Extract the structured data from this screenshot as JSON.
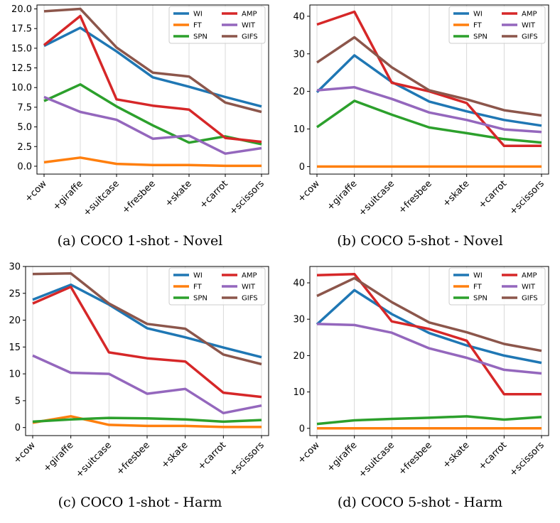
{
  "colors": {
    "WI": "#1f77b4",
    "FT": "#ff7f0e",
    "SPN": "#2ca02c",
    "AMP": "#d62728",
    "WIT": "#9467bd",
    "GIFS": "#8c564b"
  },
  "chart_data": [
    {
      "type": "line",
      "caption": "(a) COCO 1-shot - Novel",
      "categories": [
        "+cow",
        "+giraffe",
        "+suitcase",
        "+fresbee",
        "+skate",
        "+carrot",
        "+scissors"
      ],
      "ylim": [
        -1.0,
        20.5
      ],
      "yticks": [
        0.0,
        2.5,
        5.0,
        7.5,
        10.0,
        12.5,
        15.0,
        17.5,
        20.0
      ],
      "ytick_labels": [
        "0.0",
        "2.5",
        "5.0",
        "7.5",
        "10.0",
        "12.5",
        "15.0",
        "17.5",
        "20.0"
      ],
      "grid": "vertical",
      "legend": "top-right",
      "series": [
        {
          "name": "WI",
          "values": [
            15.3,
            17.6,
            14.6,
            11.3,
            10.1,
            8.8,
            7.6
          ]
        },
        {
          "name": "FT",
          "values": [
            0.5,
            1.1,
            0.3,
            0.15,
            0.15,
            0.05,
            0.05
          ]
        },
        {
          "name": "SPN",
          "values": [
            8.3,
            10.4,
            7.6,
            5.2,
            3.0,
            3.8,
            2.8
          ]
        },
        {
          "name": "AMP",
          "values": [
            15.4,
            19.1,
            8.5,
            7.7,
            7.2,
            3.6,
            3.1
          ]
        },
        {
          "name": "WIT",
          "values": [
            8.8,
            6.9,
            5.9,
            3.5,
            3.9,
            1.6,
            2.3
          ]
        },
        {
          "name": "GIFS",
          "values": [
            19.7,
            20.0,
            15.1,
            11.9,
            11.4,
            8.1,
            6.9
          ]
        }
      ]
    },
    {
      "type": "line",
      "caption": "(b) COCO 5-shot - Novel",
      "categories": [
        "+cow",
        "+giraffe",
        "+suitcase",
        "+fresbee",
        "+skate",
        "+carrot",
        "+scissors"
      ],
      "ylim": [
        -2.0,
        43.0
      ],
      "yticks": [
        0,
        10,
        20,
        30,
        40
      ],
      "ytick_labels": [
        "0",
        "10",
        "20",
        "30",
        "40"
      ],
      "grid": "vertical",
      "legend": "top-right",
      "series": [
        {
          "name": "WI",
          "values": [
            19.8,
            29.6,
            22.5,
            17.3,
            14.7,
            12.4,
            10.9
          ]
        },
        {
          "name": "FT",
          "values": [
            0.0,
            0.0,
            0.0,
            0.0,
            0.0,
            0.0,
            0.0
          ]
        },
        {
          "name": "SPN",
          "values": [
            10.5,
            17.5,
            13.8,
            10.4,
            8.9,
            7.3,
            6.4
          ]
        },
        {
          "name": "AMP",
          "values": [
            37.8,
            41.2,
            22.3,
            20.0,
            16.9,
            5.5,
            5.5
          ]
        },
        {
          "name": "WIT",
          "values": [
            20.3,
            21.1,
            18.0,
            14.4,
            12.4,
            9.9,
            9.2
          ]
        },
        {
          "name": "GIFS",
          "values": [
            27.7,
            34.4,
            26.4,
            20.3,
            17.9,
            15.0,
            13.6
          ]
        }
      ]
    },
    {
      "type": "line",
      "caption": "(c) COCO 1-shot - Harm",
      "categories": [
        "+cow",
        "+giraffe",
        "+suitcase",
        "+fresbee",
        "+skate",
        "+carrot",
        "+scissors"
      ],
      "ylim": [
        -1.5,
        30.0
      ],
      "yticks": [
        0,
        5,
        10,
        15,
        20,
        25,
        30
      ],
      "ytick_labels": [
        "0",
        "5",
        "10",
        "15",
        "20",
        "25",
        "30"
      ],
      "grid": "vertical",
      "legend": "top-right",
      "series": [
        {
          "name": "WI",
          "values": [
            23.8,
            26.6,
            22.9,
            18.5,
            16.8,
            14.9,
            13.1
          ]
        },
        {
          "name": "FT",
          "values": [
            0.9,
            2.1,
            0.5,
            0.3,
            0.3,
            0.1,
            0.1
          ]
        },
        {
          "name": "SPN",
          "values": [
            1.1,
            1.5,
            1.8,
            1.7,
            1.5,
            1.1,
            1.4
          ]
        },
        {
          "name": "AMP",
          "values": [
            23.1,
            26.2,
            14.0,
            12.9,
            12.3,
            6.5,
            5.7
          ]
        },
        {
          "name": "WIT",
          "values": [
            13.4,
            10.2,
            10.0,
            6.3,
            7.2,
            2.7,
            4.1
          ]
        },
        {
          "name": "GIFS",
          "values": [
            28.6,
            28.7,
            23.1,
            19.3,
            18.4,
            13.6,
            11.8
          ]
        }
      ]
    },
    {
      "type": "line",
      "caption": "(d) COCO 5-shot - Harm",
      "categories": [
        "+cow",
        "+giraffe",
        "+suitcase",
        "+fresbee",
        "+skate",
        "+carrot",
        "+scissors"
      ],
      "ylim": [
        -2.0,
        44.5
      ],
      "yticks": [
        0,
        10,
        20,
        30,
        40
      ],
      "ytick_labels": [
        "0",
        "10",
        "20",
        "30",
        "40"
      ],
      "grid": "vertical",
      "legend": "top-right",
      "series": [
        {
          "name": "WI",
          "values": [
            28.6,
            38.0,
            31.4,
            26.2,
            22.8,
            20.0,
            18.0
          ]
        },
        {
          "name": "FT",
          "values": [
            0.0,
            0.0,
            0.0,
            0.0,
            0.0,
            0.0,
            0.0
          ]
        },
        {
          "name": "SPN",
          "values": [
            1.2,
            2.2,
            2.6,
            2.9,
            3.3,
            2.4,
            3.1
          ]
        },
        {
          "name": "AMP",
          "values": [
            42.1,
            42.4,
            29.4,
            27.3,
            24.1,
            9.4,
            9.4
          ]
        },
        {
          "name": "WIT",
          "values": [
            28.7,
            28.4,
            26.3,
            22.0,
            19.4,
            16.1,
            15.1
          ]
        },
        {
          "name": "GIFS",
          "values": [
            36.4,
            41.3,
            34.7,
            29.1,
            26.4,
            23.2,
            21.3
          ]
        }
      ]
    }
  ]
}
